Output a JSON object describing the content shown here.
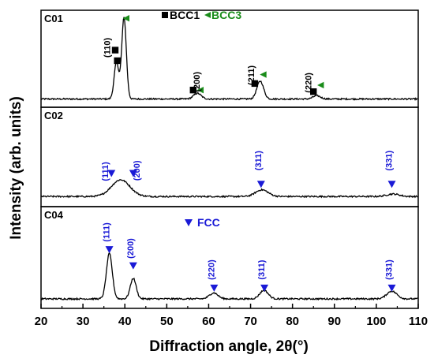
{
  "chart_data": {
    "type": "line",
    "xlabel": "Diffraction angle, 2θ(°)",
    "ylabel": "Intensity (arb. units)",
    "xlim": [
      20,
      110
    ],
    "x_ticks": [
      "20",
      "30",
      "40",
      "50",
      "60",
      "70",
      "80",
      "90",
      "100",
      "110"
    ],
    "grid": false,
    "colors": {
      "bcc1": "#000000",
      "bcc3": "#1a8c1a",
      "fcc": "#1a1ad6",
      "curve": "#000000"
    },
    "legend_bcc": {
      "bcc1_label": "BCC1",
      "bcc3_label": "BCC3"
    },
    "legend_fcc": {
      "fcc_label": "FCC"
    },
    "panels": [
      {
        "name": "C01",
        "baseline": 0.03,
        "peaks": [
          {
            "x": 38.0,
            "h": 0.45,
            "w": 0.55
          },
          {
            "x": 39.8,
            "h": 1.0,
            "w": 0.55
          },
          {
            "x": 57.3,
            "h": 0.07,
            "w": 0.9
          },
          {
            "x": 72.3,
            "h": 0.22,
            "w": 0.8
          },
          {
            "x": 85.8,
            "h": 0.04,
            "w": 0.9
          }
        ],
        "reflections": [
          {
            "hkl": "(110)",
            "x": 36.5,
            "label_y": 0.66,
            "markers": [
              {
                "phase": "bcc1",
                "x": 37.7,
                "y": 0.63
              },
              {
                "phase": "bcc1",
                "x": 38.2,
                "y": 0.5
              },
              {
                "phase": "bcc3",
                "x": 40.3,
                "y": 1.02
              }
            ]
          },
          {
            "hkl": "(200)",
            "x": 57.8,
            "label_y": 0.24,
            "markers": [
              {
                "phase": "bcc1",
                "x": 56.3,
                "y": 0.14
              },
              {
                "phase": "bcc3",
                "x": 58.0,
                "y": 0.14
              }
            ]
          },
          {
            "hkl": "(211)",
            "x": 70.8,
            "label_y": 0.32,
            "markers": [
              {
                "phase": "bcc1",
                "x": 71.0,
                "y": 0.22
              },
              {
                "phase": "bcc3",
                "x": 73.0,
                "y": 0.33
              }
            ]
          },
          {
            "hkl": "(220)",
            "x": 84.5,
            "label_y": 0.23,
            "markers": [
              {
                "phase": "bcc1",
                "x": 85.0,
                "y": 0.12
              },
              {
                "phase": "bcc3",
                "x": 86.7,
                "y": 0.2
              }
            ]
          }
        ]
      },
      {
        "name": "C02",
        "baseline": 0.05,
        "peaks": [
          {
            "x": 39.0,
            "h": 0.2,
            "w": 2.2
          },
          {
            "x": 72.7,
            "h": 0.08,
            "w": 1.5
          },
          {
            "x": 104.0,
            "h": 0.03,
            "w": 1.5
          }
        ],
        "reflections": [
          {
            "hkl": "(111)",
            "x": 36.0,
            "label_y": 0.35,
            "markers": [
              {
                "phase": "fcc",
                "x": 36.8,
                "y": 0.33
              }
            ]
          },
          {
            "hkl": "(200)",
            "x": 43.5,
            "label_y": 0.36,
            "markers": [
              {
                "phase": "fcc",
                "x": 42.0,
                "y": 0.33
              }
            ]
          },
          {
            "hkl": "(311)",
            "x": 72.5,
            "label_y": 0.48,
            "markers": [
              {
                "phase": "fcc",
                "x": 72.5,
                "y": 0.2
              }
            ]
          },
          {
            "hkl": "(331)",
            "x": 103.7,
            "label_y": 0.48,
            "markers": [
              {
                "phase": "fcc",
                "x": 103.7,
                "y": 0.2
              }
            ]
          }
        ]
      },
      {
        "name": "C04",
        "baseline": 0.04,
        "peaks": [
          {
            "x": 36.3,
            "h": 0.53,
            "w": 0.7
          },
          {
            "x": 42.0,
            "h": 0.24,
            "w": 0.7
          },
          {
            "x": 61.2,
            "h": 0.07,
            "w": 1.0
          },
          {
            "x": 73.2,
            "h": 0.1,
            "w": 1.0
          },
          {
            "x": 103.7,
            "h": 0.09,
            "w": 1.2
          }
        ],
        "reflections": [
          {
            "hkl": "(111)",
            "x": 36.3,
            "label_y": 0.82,
            "markers": [
              {
                "phase": "fcc",
                "x": 36.3,
                "y": 0.62
              }
            ]
          },
          {
            "hkl": "(200)",
            "x": 42.0,
            "label_y": 0.63,
            "markers": [
              {
                "phase": "fcc",
                "x": 42.0,
                "y": 0.43
              }
            ]
          },
          {
            "hkl": "(220)",
            "x": 61.3,
            "label_y": 0.38,
            "markers": [
              {
                "phase": "fcc",
                "x": 61.3,
                "y": 0.17
              }
            ]
          },
          {
            "hkl": "(311)",
            "x": 73.3,
            "label_y": 0.38,
            "markers": [
              {
                "phase": "fcc",
                "x": 73.3,
                "y": 0.17
              }
            ]
          },
          {
            "hkl": "(331)",
            "x": 103.7,
            "label_y": 0.38,
            "markers": [
              {
                "phase": "fcc",
                "x": 103.7,
                "y": 0.17
              }
            ]
          }
        ]
      }
    ]
  }
}
